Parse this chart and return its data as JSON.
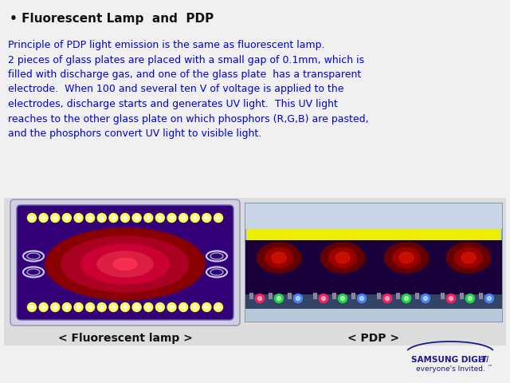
{
  "bg_color": "#f0f0f0",
  "title": "• Fluorescent Lamp  and  PDP",
  "title_color": "#111111",
  "title_fontsize": 11,
  "body_text": "Principle of PDP light emission is the same as fluorescent lamp.\n2 pieces of glass plates are placed with a small gap of 0.1mm, which is\nfilled with discharge gas, and one of the glass plate  has a transparent\nelectrode.  When 100 and several ten V of voltage is applied to the\nelectrodes, discharge starts and generates UV light.  This UV light\nreaches to the other glass plate on which phosphors (R,G,B) are pasted,\nand the phosphors convert UV light to visible light.",
  "body_color": "#0000dd",
  "body_fontsize": 9.0,
  "label_fl": "< Fluorescent lamp >",
  "label_pdp": "< PDP >",
  "label_color": "#111111",
  "label_fontsize": 10,
  "diagram_bg": "#dcdcdc",
  "fl_outer_color": "#ccccdd",
  "fl_inner_color": "#330077",
  "pdp_top_color": "#ccd8ee",
  "pdp_yellow_color": "#eeee00",
  "pdp_mid_color": "#1a003a",
  "pdp_bot_color": "#aabbcc",
  "samsung_color": "#1a1a88"
}
